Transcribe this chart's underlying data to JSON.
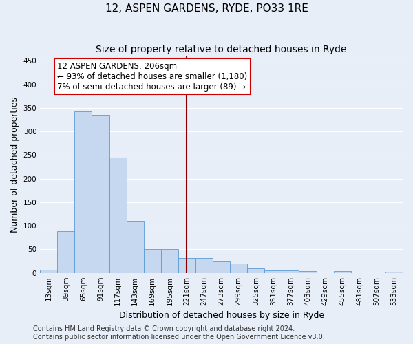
{
  "title": "12, ASPEN GARDENS, RYDE, PO33 1RE",
  "subtitle": "Size of property relative to detached houses in Ryde",
  "xlabel": "Distribution of detached houses by size in Ryde",
  "ylabel": "Number of detached properties",
  "bar_color": "#c5d8f0",
  "bar_edge_color": "#5b9bd5",
  "background_color": "#e8eef8",
  "grid_color": "#ffffff",
  "categories": [
    "13sqm",
    "39sqm",
    "65sqm",
    "91sqm",
    "117sqm",
    "143sqm",
    "169sqm",
    "195sqm",
    "221sqm",
    "247sqm",
    "273sqm",
    "299sqm",
    "325sqm",
    "351sqm",
    "377sqm",
    "403sqm",
    "429sqm",
    "455sqm",
    "481sqm",
    "507sqm",
    "533sqm"
  ],
  "values": [
    7,
    89,
    342,
    335,
    245,
    110,
    50,
    50,
    32,
    32,
    25,
    20,
    10,
    5,
    5,
    4,
    0,
    4,
    0,
    0,
    3
  ],
  "ylim": [
    0,
    460
  ],
  "yticks": [
    0,
    50,
    100,
    150,
    200,
    250,
    300,
    350,
    400,
    450
  ],
  "vline_x": 8.0,
  "vline_color": "#8b0000",
  "annotation_text": "12 ASPEN GARDENS: 206sqm\n← 93% of detached houses are smaller (1,180)\n7% of semi-detached houses are larger (89) →",
  "annotation_box_color": "#ffffff",
  "annotation_box_edge_color": "#cc0000",
  "footer": "Contains HM Land Registry data © Crown copyright and database right 2024.\nContains public sector information licensed under the Open Government Licence v3.0.",
  "title_fontsize": 11,
  "subtitle_fontsize": 10,
  "axis_label_fontsize": 9,
  "tick_fontsize": 7.5,
  "annotation_fontsize": 8.5,
  "footer_fontsize": 7
}
